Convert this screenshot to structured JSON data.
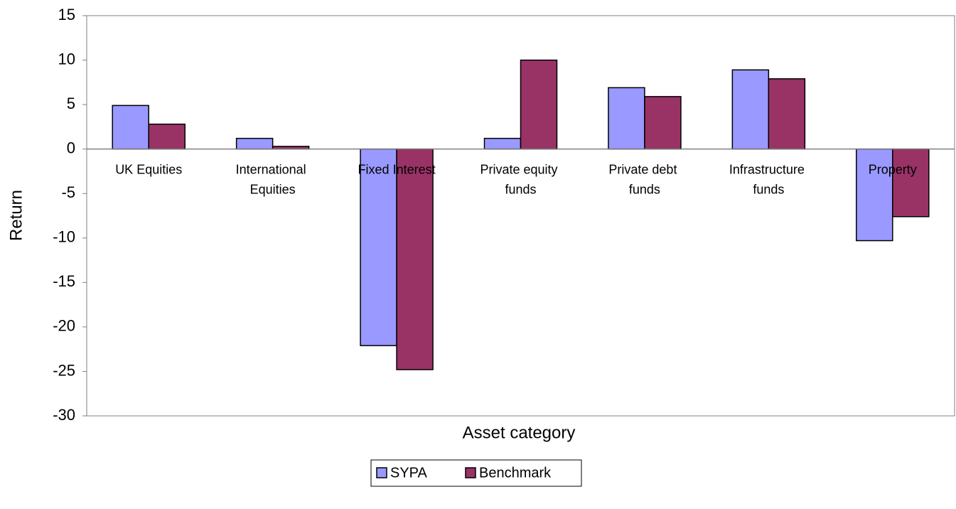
{
  "chart_data": {
    "type": "bar",
    "categories": [
      "UK Equities",
      "International Equities",
      "Fixed Interest",
      "Private equity funds",
      "Private debt funds",
      "Infrastructure funds",
      "Property"
    ],
    "series": [
      {
        "name": "SYPA",
        "color": "#9999ff",
        "values": [
          4.9,
          1.2,
          -22.1,
          1.2,
          6.9,
          8.9,
          -10.3
        ]
      },
      {
        "name": "Benchmark",
        "color": "#993366",
        "values": [
          2.8,
          0.3,
          -24.8,
          10,
          5.9,
          7.9,
          -7.6
        ]
      }
    ],
    "ylim": [
      -30,
      15
    ],
    "yticks": [
      -30,
      -25,
      -20,
      -15,
      -10,
      -5,
      0,
      5,
      10,
      15
    ],
    "y_label": "Return",
    "x_label": "Asset category",
    "legend": "bottom"
  }
}
